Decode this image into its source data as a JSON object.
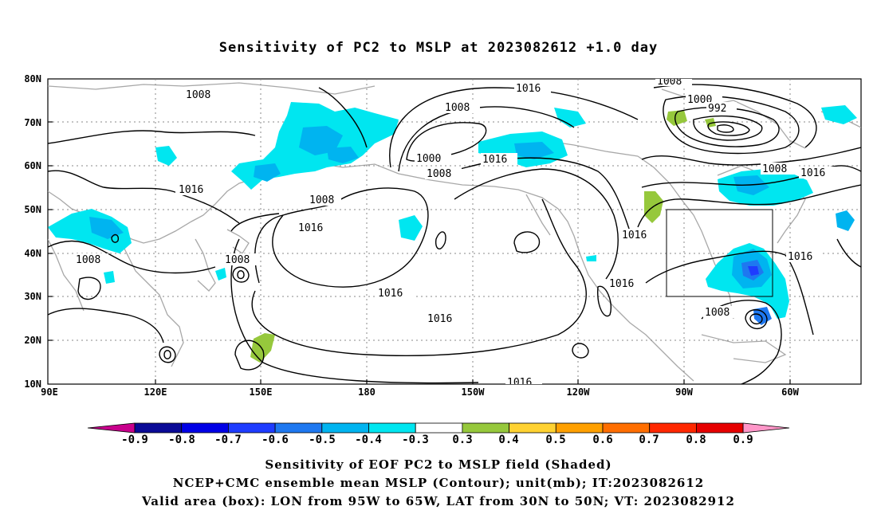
{
  "title": "Sensitivity of PC2 to MSLP at 2023082612 +1.0 day",
  "map": {
    "x_ticks": [
      "90E",
      "120E",
      "150E",
      "180",
      "150W",
      "120W",
      "90W",
      "60W"
    ],
    "y_ticks": [
      "80N",
      "70N",
      "60N",
      "50N",
      "40N",
      "30N",
      "20N",
      "10N"
    ],
    "lon_range": [
      "90E",
      "45W"
    ],
    "lat_range": [
      "10N",
      "80N"
    ],
    "grid": "dotted",
    "valid_box_label": "Valid area (box)",
    "contour_labels": [
      "1008",
      "1016",
      "1008",
      "1016",
      "1008",
      "1016",
      "1008",
      "1000",
      "1008",
      "1016",
      "1016",
      "1016",
      "1016",
      "1008",
      "1000",
      "992",
      "1008",
      "1016",
      "1016",
      "1016",
      "1016",
      "1008",
      "1008"
    ]
  },
  "colorbar": {
    "labels": [
      "-0.9",
      "-0.8",
      "-0.7",
      "-0.6",
      "-0.5",
      "-0.4",
      "-0.3",
      "0.3",
      "0.4",
      "0.5",
      "0.6",
      "0.7",
      "0.8",
      "0.9"
    ],
    "colors": [
      "#c8008c",
      "#0a0a96",
      "#0000e6",
      "#1e3cff",
      "#1e78f0",
      "#00b4f0",
      "#00e6f0",
      "#ffffff",
      "#96c83c",
      "#ffd232",
      "#ffa000",
      "#ff6e00",
      "#ff2800",
      "#e60000",
      "#ff96c8"
    ]
  },
  "captions": {
    "line1": "Sensitivity of EOF PC2 to MSLP field (Shaded)",
    "line2": "NCEP+CMC ensemble mean MSLP (Contour); unit(mb); IT:2023082612",
    "line3": "Valid area (box): LON from 95W to 65W, LAT from 30N to 50N; VT: 2023082912"
  }
}
